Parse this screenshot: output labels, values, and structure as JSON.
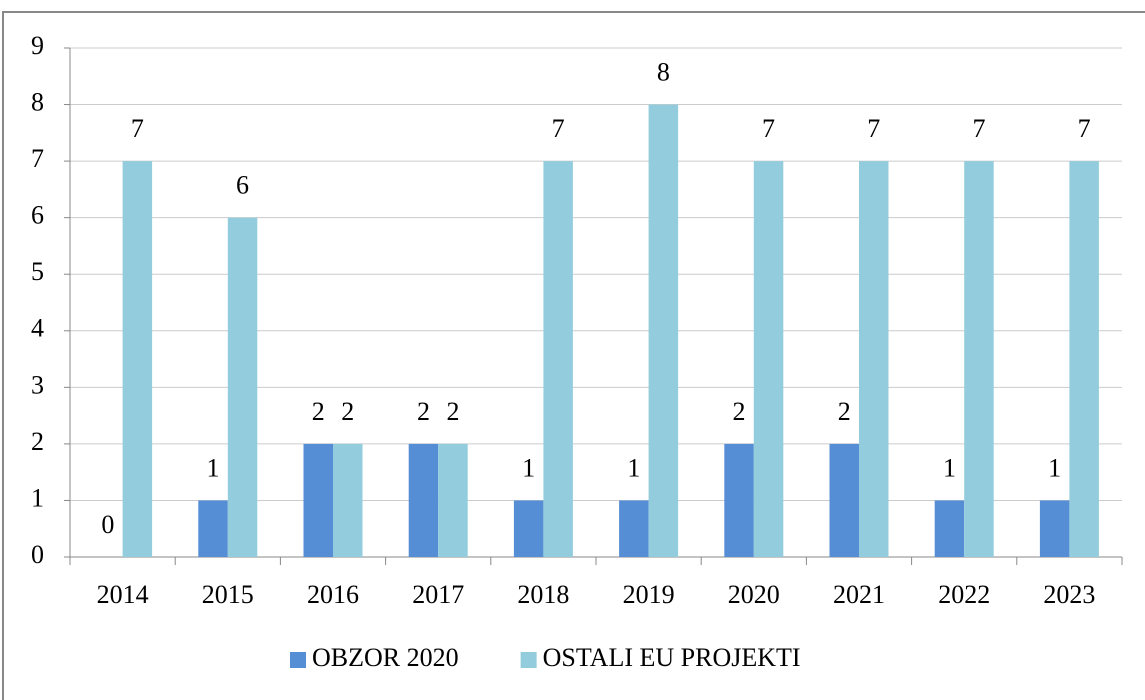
{
  "chart_data": {
    "type": "bar",
    "categories": [
      "2014",
      "2015",
      "2016",
      "2017",
      "2018",
      "2019",
      "2020",
      "2021",
      "2022",
      "2023"
    ],
    "series": [
      {
        "name": "OBZOR 2020",
        "color": "#558ed5",
        "values": [
          0,
          1,
          2,
          2,
          1,
          1,
          2,
          2,
          1,
          1
        ]
      },
      {
        "name": "OSTALI EU PROJEKTI",
        "color": "#93cddd",
        "values": [
          7,
          6,
          2,
          2,
          7,
          8,
          7,
          7,
          7,
          7
        ]
      }
    ],
    "ylim": [
      0,
      9
    ],
    "yticks": [
      0,
      1,
      2,
      3,
      4,
      5,
      6,
      7,
      8,
      9
    ],
    "grid": true,
    "legend": "bottom"
  }
}
